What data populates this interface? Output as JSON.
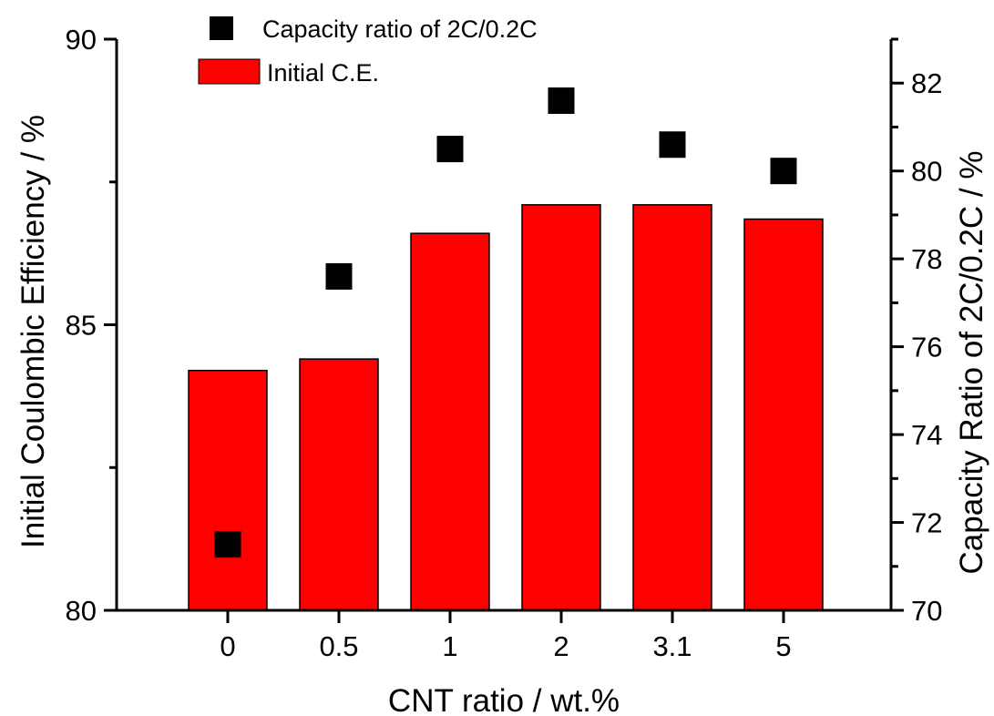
{
  "chart_data": {
    "type": "bar",
    "categories": [
      "0",
      "0.5",
      "1",
      "2",
      "3.1",
      "5"
    ],
    "xlabel": "CNT ratio / wt.%",
    "series": [
      {
        "name": "Initial C.E.",
        "type": "bar",
        "axis": "left",
        "color": "#ff0000",
        "values": [
          84.2,
          84.4,
          86.6,
          87.1,
          87.1,
          86.85
        ]
      },
      {
        "name": "Capacity ratio of 2C/0.2C",
        "type": "scatter",
        "marker": "square",
        "axis": "right",
        "color": "#000000",
        "values": [
          71.5,
          77.6,
          80.5,
          81.6,
          80.6,
          80.0
        ]
      }
    ],
    "y_left": {
      "label": "Initial Coulombic Efficiency / %",
      "ylim": [
        80,
        90
      ],
      "ticks": [
        "80",
        "85",
        "90"
      ]
    },
    "y_right": {
      "label": "Capacity Ratio of 2C/0.2C / %",
      "ylim": [
        70,
        83
      ],
      "ticks": [
        "70",
        "72",
        "74",
        "76",
        "78",
        "80",
        "82"
      ]
    },
    "legend": "top-left",
    "grid": false
  }
}
